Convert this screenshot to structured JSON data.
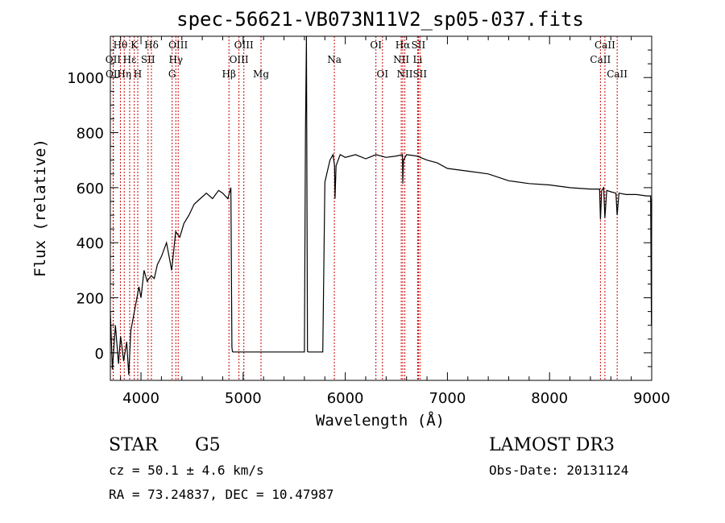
{
  "chart_data": {
    "type": "line",
    "title": "spec-56621-VB073N11V2_sp05-037.fits",
    "xlabel": "Wavelength (Å)",
    "ylabel": "Flux (relative)",
    "xlim": [
      3700,
      9000
    ],
    "ylim": [
      -100,
      1150
    ],
    "x_ticks": [
      4000,
      5000,
      6000,
      7000,
      8000,
      9000
    ],
    "x_tick_labels": [
      "4000",
      "5000",
      "6000",
      "7000",
      "8000",
      "9000"
    ],
    "y_ticks": [
      0,
      200,
      400,
      600,
      800,
      1000
    ],
    "y_tick_labels": [
      "0",
      "200",
      "400",
      "600",
      "800",
      "1000"
    ],
    "spectrum": {
      "name": "flux",
      "x": [
        3700,
        3720,
        3750,
        3780,
        3800,
        3830,
        3860,
        3880,
        3900,
        3920,
        3950,
        3980,
        4000,
        4030,
        4060,
        4100,
        4130,
        4160,
        4200,
        4250,
        4300,
        4340,
        4380,
        4420,
        4470,
        4520,
        4580,
        4640,
        4700,
        4760,
        4800,
        4850,
        4880,
        4890,
        4895,
        4900,
        5000,
        5600,
        5610,
        5620,
        5630,
        5640,
        5700,
        5740,
        5760,
        5780,
        5800,
        5850,
        5880,
        5895,
        5900,
        5910,
        5950,
        6000,
        6100,
        6200,
        6300,
        6400,
        6500,
        6560,
        6563,
        6570,
        6600,
        6700,
        6800,
        6900,
        7000,
        7200,
        7400,
        7600,
        7800,
        8000,
        8200,
        8400,
        8490,
        8498,
        8510,
        8530,
        8542,
        8560,
        8600,
        8650,
        8662,
        8680,
        8750,
        8850,
        8950,
        8990,
        8998,
        9000
      ],
      "y": [
        150,
        -60,
        100,
        -40,
        60,
        -30,
        40,
        -80,
        80,
        120,
        180,
        240,
        200,
        300,
        260,
        280,
        270,
        320,
        350,
        400,
        300,
        440,
        420,
        470,
        500,
        540,
        560,
        580,
        560,
        590,
        580,
        560,
        600,
        20,
        5,
        3,
        3,
        3,
        800,
        1160,
        5,
        3,
        3,
        3,
        3,
        3,
        620,
        700,
        720,
        680,
        560,
        680,
        720,
        710,
        720,
        705,
        720,
        710,
        715,
        720,
        615,
        700,
        720,
        715,
        700,
        690,
        670,
        660,
        650,
        625,
        615,
        610,
        600,
        595,
        595,
        485,
        590,
        600,
        490,
        590,
        585,
        580,
        500,
        580,
        575,
        575,
        570,
        570,
        100,
        560
      ]
    },
    "spectral_lines": [
      {
        "name": "Hθ",
        "wavelength": 3798,
        "row": 0
      },
      {
        "name": "OII",
        "wavelength": 3727,
        "row": 1
      },
      {
        "name": "Hη",
        "wavelength": 3836,
        "row": 2
      },
      {
        "name": "OII",
        "wavelength": 3729,
        "row": 2
      },
      {
        "name": "K",
        "wavelength": 3934,
        "row": 0
      },
      {
        "name": "Hε",
        "wavelength": 3889,
        "row": 1
      },
      {
        "name": "SII",
        "wavelength": 4069,
        "row": 1
      },
      {
        "name": "H",
        "wavelength": 3968,
        "row": 2
      },
      {
        "name": "Hδ",
        "wavelength": 4102,
        "row": 0
      },
      {
        "name": "OIII",
        "wavelength": 4364,
        "row": 0
      },
      {
        "name": "Hγ",
        "wavelength": 4341,
        "row": 1
      },
      {
        "name": "G",
        "wavelength": 4305,
        "row": 2
      },
      {
        "name": "OIII",
        "wavelength": 5007,
        "row": 0
      },
      {
        "name": "OIII",
        "wavelength": 4959,
        "row": 1
      },
      {
        "name": "Hβ",
        "wavelength": 4861,
        "row": 2
      },
      {
        "name": "Mg",
        "wavelength": 5175,
        "row": 2
      },
      {
        "name": "Na",
        "wavelength": 5893,
        "row": 1
      },
      {
        "name": "OI",
        "wavelength": 6300,
        "row": 0
      },
      {
        "name": "OI",
        "wavelength": 6364,
        "row": 2
      },
      {
        "name": "Hα",
        "wavelength": 6563,
        "row": 0
      },
      {
        "name": "SII",
        "wavelength": 6716,
        "row": 0
      },
      {
        "name": "NII",
        "wavelength": 6548,
        "row": 1
      },
      {
        "name": "Li",
        "wavelength": 6708,
        "row": 1
      },
      {
        "name": "NII",
        "wavelength": 6583,
        "row": 2
      },
      {
        "name": "SII",
        "wavelength": 6731,
        "row": 2
      },
      {
        "name": "CaII",
        "wavelength": 8542,
        "row": 0
      },
      {
        "name": "CaII",
        "wavelength": 8498,
        "row": 1
      },
      {
        "name": "CaII",
        "wavelength": 8662,
        "row": 2
      }
    ],
    "line_color": "#000000",
    "marker_color": "#cc0000"
  },
  "footer": {
    "object_class": "STAR",
    "subclass": "G5",
    "survey": "LAMOST DR3",
    "redshift": "cz = 50.1 ± 4.6 km/s",
    "obs_date": "Obs-Date: 20131124",
    "coords": "RA =  73.24837, DEC =  10.47987"
  }
}
